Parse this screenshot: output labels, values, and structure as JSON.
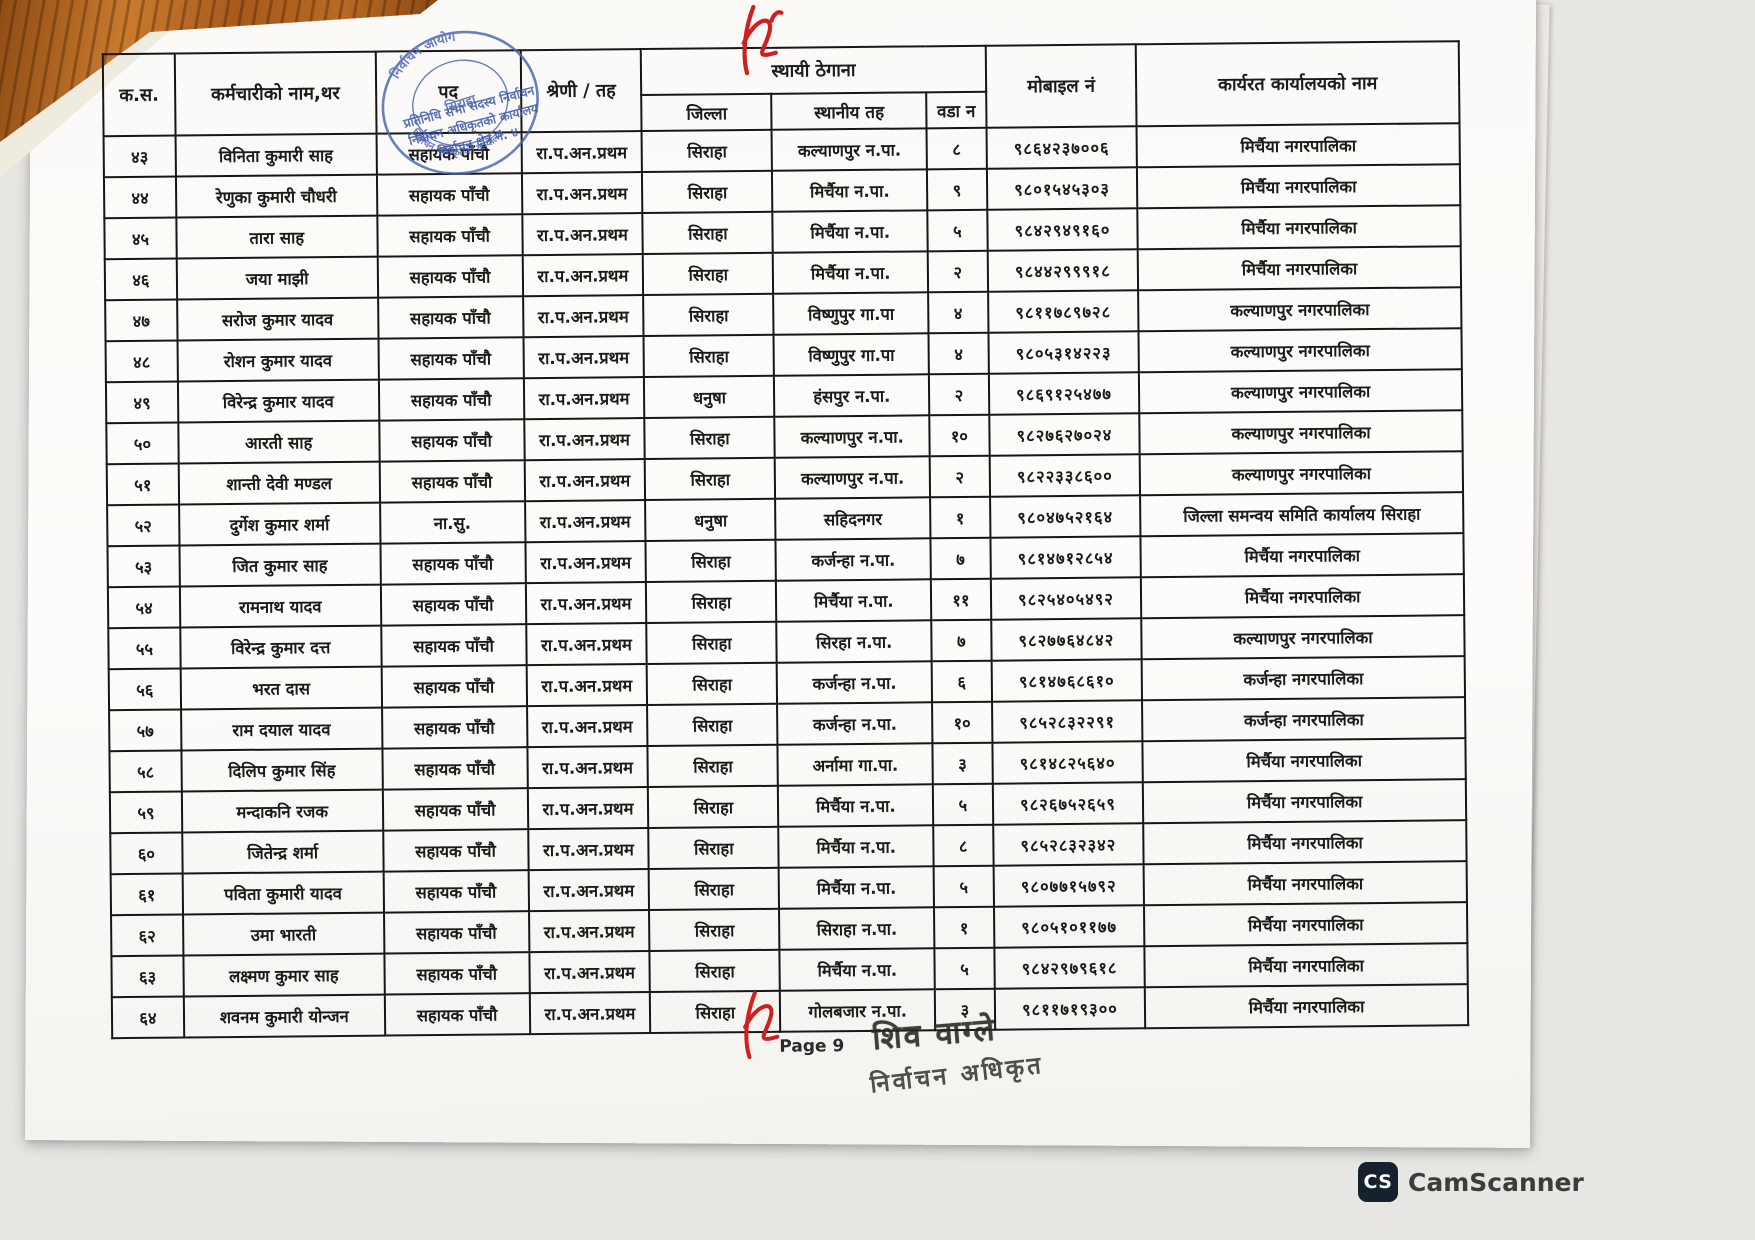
{
  "scan": {
    "page_label": "Page 9",
    "camscanner_initials": "CS",
    "camscanner_label": "CamScanner"
  },
  "colors": {
    "ink": "#1b1b1b",
    "red_ink": "#cf1f1f",
    "stamp_blue": "#4a63b0",
    "signature_stamp": "#26251f",
    "wood_desk": "#a85a1d",
    "camscanner_bg": "#16212e"
  },
  "stamps": {
    "blue": {
      "arc_top": "निर्वाचन आयोग",
      "arc_bottom": "निर्वाचन अधिकृतको कार्यालय",
      "center": "सिराहा",
      "line1": "प्रतिनिधि सभा सदस्य निर्वाचन",
      "line2": "निर्वाचन अधिकृतको कार्यालय",
      "line3": "निर्वाचन क्षेत्र नं. ४"
    },
    "signature": {
      "name": "शिव वाग्ले",
      "title": "निर्वाचन अधिकृत"
    }
  },
  "table": {
    "headers": {
      "sn": "क.स.",
      "name": "कर्मचारीको नाम,थर",
      "position": "पद",
      "grade": "श्रेणी / तह",
      "address_group": "स्थायी ठेगाना",
      "district": "जिल्ला",
      "local_level": "स्थानीय तह",
      "ward": "वडा न",
      "mobile": "मोबाइल नं",
      "office": "कार्यरत कार्यालयको नाम"
    },
    "rows": [
      {
        "sn": "४३",
        "name": "विनिता कुमारी साह",
        "position": "सहायक पाँचौ",
        "grade": "रा.प.अन.प्रथम",
        "district": "सिराहा",
        "local_level": "कल्याणपुर न.पा.",
        "ward": "८",
        "mobile": "९८६४२३७००६",
        "office": "मिर्चैया नगरपालिका"
      },
      {
        "sn": "४४",
        "name": "रेणुका कुमारी चौधरी",
        "position": "सहायक पाँचौ",
        "grade": "रा.प.अन.प्रथम",
        "district": "सिराहा",
        "local_level": "मिर्चैया न.पा.",
        "ward": "९",
        "mobile": "९८०१५४५३०३",
        "office": "मिर्चैया नगरपालिका"
      },
      {
        "sn": "४५",
        "name": "तारा साह",
        "position": "सहायक पाँचौ",
        "grade": "रा.प.अन.प्रथम",
        "district": "सिराहा",
        "local_level": "मिर्चैया न.पा.",
        "ward": "५",
        "mobile": "९८४२९४९१६०",
        "office": "मिर्चैया नगरपालिका"
      },
      {
        "sn": "४६",
        "name": "जया माझी",
        "position": "सहायक पाँचौ",
        "grade": "रा.प.अन.प्रथम",
        "district": "सिराहा",
        "local_level": "मिर्चैया न.पा.",
        "ward": "२",
        "mobile": "९८४४२९९९१८",
        "office": "मिर्चैया नगरपालिका"
      },
      {
        "sn": "४७",
        "name": "सरोज कुमार यादव",
        "position": "सहायक पाँचौ",
        "grade": "रा.प.अन.प्रथम",
        "district": "सिराहा",
        "local_level": "विष्णुपुर गा.पा",
        "ward": "४",
        "mobile": "९८११७८९७२८",
        "office": "कल्याणपुर नगरपालिका"
      },
      {
        "sn": "४८",
        "name": "रोशन कुमार यादव",
        "position": "सहायक पाँचौ",
        "grade": "रा.प.अन.प्रथम",
        "district": "सिराहा",
        "local_level": "विष्णुपुर गा.पा",
        "ward": "४",
        "mobile": "९८०५३१४२२३",
        "office": "कल्याणपुर नगरपालिका"
      },
      {
        "sn": "४९",
        "name": "विरेन्द्र कुमार यादव",
        "position": "सहायक पाँचौ",
        "grade": "रा.प.अन.प्रथम",
        "district": "धनुषा",
        "local_level": "हंसपुर न.पा.",
        "ward": "२",
        "mobile": "९८६९१२५४७७",
        "office": "कल्याणपुर नगरपालिका"
      },
      {
        "sn": "५०",
        "name": "आरती साह",
        "position": "सहायक पाँचौ",
        "grade": "रा.प.अन.प्रथम",
        "district": "सिराहा",
        "local_level": "कल्याणपुर न.पा.",
        "ward": "१०",
        "mobile": "९८२७६२७०२४",
        "office": "कल्याणपुर नगरपालिका"
      },
      {
        "sn": "५१",
        "name": "शान्ती देवी मण्डल",
        "position": "सहायक पाँचौ",
        "grade": "रा.प.अन.प्रथम",
        "district": "सिराहा",
        "local_level": "कल्याणपुर न.पा.",
        "ward": "२",
        "mobile": "९८२२३३८६००",
        "office": "कल्याणपुर नगरपालिका"
      },
      {
        "sn": "५२",
        "name": "दुर्गेश कुमार शर्मा",
        "position": "ना.सु.",
        "grade": "रा.प.अन.प्रथम",
        "district": "धनुषा",
        "local_level": "सहिदनगर",
        "ward": "१",
        "mobile": "९८०४७५२१६४",
        "office": "जिल्ला समन्वय समिति कार्यालय सिराहा"
      },
      {
        "sn": "५३",
        "name": "जित कुमार साह",
        "position": "सहायक पाँचौ",
        "grade": "रा.प.अन.प्रथम",
        "district": "सिराहा",
        "local_level": "कर्जन्हा न.पा.",
        "ward": "७",
        "mobile": "९८१४७१२८५४",
        "office": "मिर्चैया नगरपालिका"
      },
      {
        "sn": "५४",
        "name": "रामनाथ यादव",
        "position": "सहायक पाँचौ",
        "grade": "रा.प.अन.प्रथम",
        "district": "सिराहा",
        "local_level": "मिर्चैया न.पा.",
        "ward": "११",
        "mobile": "९८२५४०५४९२",
        "office": "मिर्चैया नगरपालिका"
      },
      {
        "sn": "५५",
        "name": "विरेन्द्र कुमार दत्त",
        "position": "सहायक पाँचौ",
        "grade": "रा.प.अन.प्रथम",
        "district": "सिराहा",
        "local_level": "सिरहा न.पा.",
        "ward": "७",
        "mobile": "९८२७७६४८४२",
        "office": "कल्याणपुर नगरपालिका"
      },
      {
        "sn": "५६",
        "name": "भरत दास",
        "position": "सहायक पाँचौ",
        "grade": "रा.प.अन.प्रथम",
        "district": "सिराहा",
        "local_level": "कर्जन्हा न.पा.",
        "ward": "६",
        "mobile": "९८१४७६८६१०",
        "office": "कर्जन्हा नगरपालिका"
      },
      {
        "sn": "५७",
        "name": "राम दयाल यादव",
        "position": "सहायक पाँचौ",
        "grade": "रा.प.अन.प्रथम",
        "district": "सिराहा",
        "local_level": "कर्जन्हा न.पा.",
        "ward": "१०",
        "mobile": "९८५२८३२२९१",
        "office": "कर्जन्हा नगरपालिका"
      },
      {
        "sn": "५८",
        "name": "दिलिप कुमार सिंह",
        "position": "सहायक पाँचौ",
        "grade": "रा.प.अन.प्रथम",
        "district": "सिराहा",
        "local_level": "अर्नामा गा.पा.",
        "ward": "३",
        "mobile": "९८१४८२५६४०",
        "office": "मिर्चैया नगरपालिका"
      },
      {
        "sn": "५९",
        "name": "मन्दाकनि रजक",
        "position": "सहायक पाँचौ",
        "grade": "रा.प.अन.प्रथम",
        "district": "सिराहा",
        "local_level": "मिर्चैया न.पा.",
        "ward": "५",
        "mobile": "९८२६७५२६५९",
        "office": "मिर्चैया नगरपालिका"
      },
      {
        "sn": "६०",
        "name": "जितेन्द्र शर्मा",
        "position": "सहायक पाँचौ",
        "grade": "रा.प.अन.प्रथम",
        "district": "सिराहा",
        "local_level": "मिर्चैया न.पा.",
        "ward": "८",
        "mobile": "९८५२८३२३४२",
        "office": "मिर्चैया नगरपालिका"
      },
      {
        "sn": "६१",
        "name": "पविता कुमारी यादव",
        "position": "सहायक पाँचौ",
        "grade": "रा.प.अन.प्रथम",
        "district": "सिराहा",
        "local_level": "मिर्चैया न.पा.",
        "ward": "५",
        "mobile": "९८०७७१५७९२",
        "office": "मिर्चैया नगरपालिका"
      },
      {
        "sn": "६२",
        "name": "उमा भारती",
        "position": "सहायक पाँचौ",
        "grade": "रा.प.अन.प्रथम",
        "district": "सिराहा",
        "local_level": "सिराहा न.पा.",
        "ward": "१",
        "mobile": "९८०५१०११७७",
        "office": "मिर्चैया नगरपालिका"
      },
      {
        "sn": "६३",
        "name": "लक्ष्मण कुमार साह",
        "position": "सहायक पाँचौ",
        "grade": "रा.प.अन.प्रथम",
        "district": "सिराहा",
        "local_level": "मिर्चैया न.पा.",
        "ward": "५",
        "mobile": "९८४२९७९६१८",
        "office": "मिर्चैया नगरपालिका"
      },
      {
        "sn": "६४",
        "name": "शवनम कुमारी योन्जन",
        "position": "सहायक पाँचौ",
        "grade": "रा.प.अन.प्रथम",
        "district": "सिराहा",
        "local_level": "गोलबजार न.पा.",
        "ward": "३",
        "mobile": "९८११७१९३००",
        "office": "मिर्चैया नगरपालिका"
      }
    ]
  }
}
